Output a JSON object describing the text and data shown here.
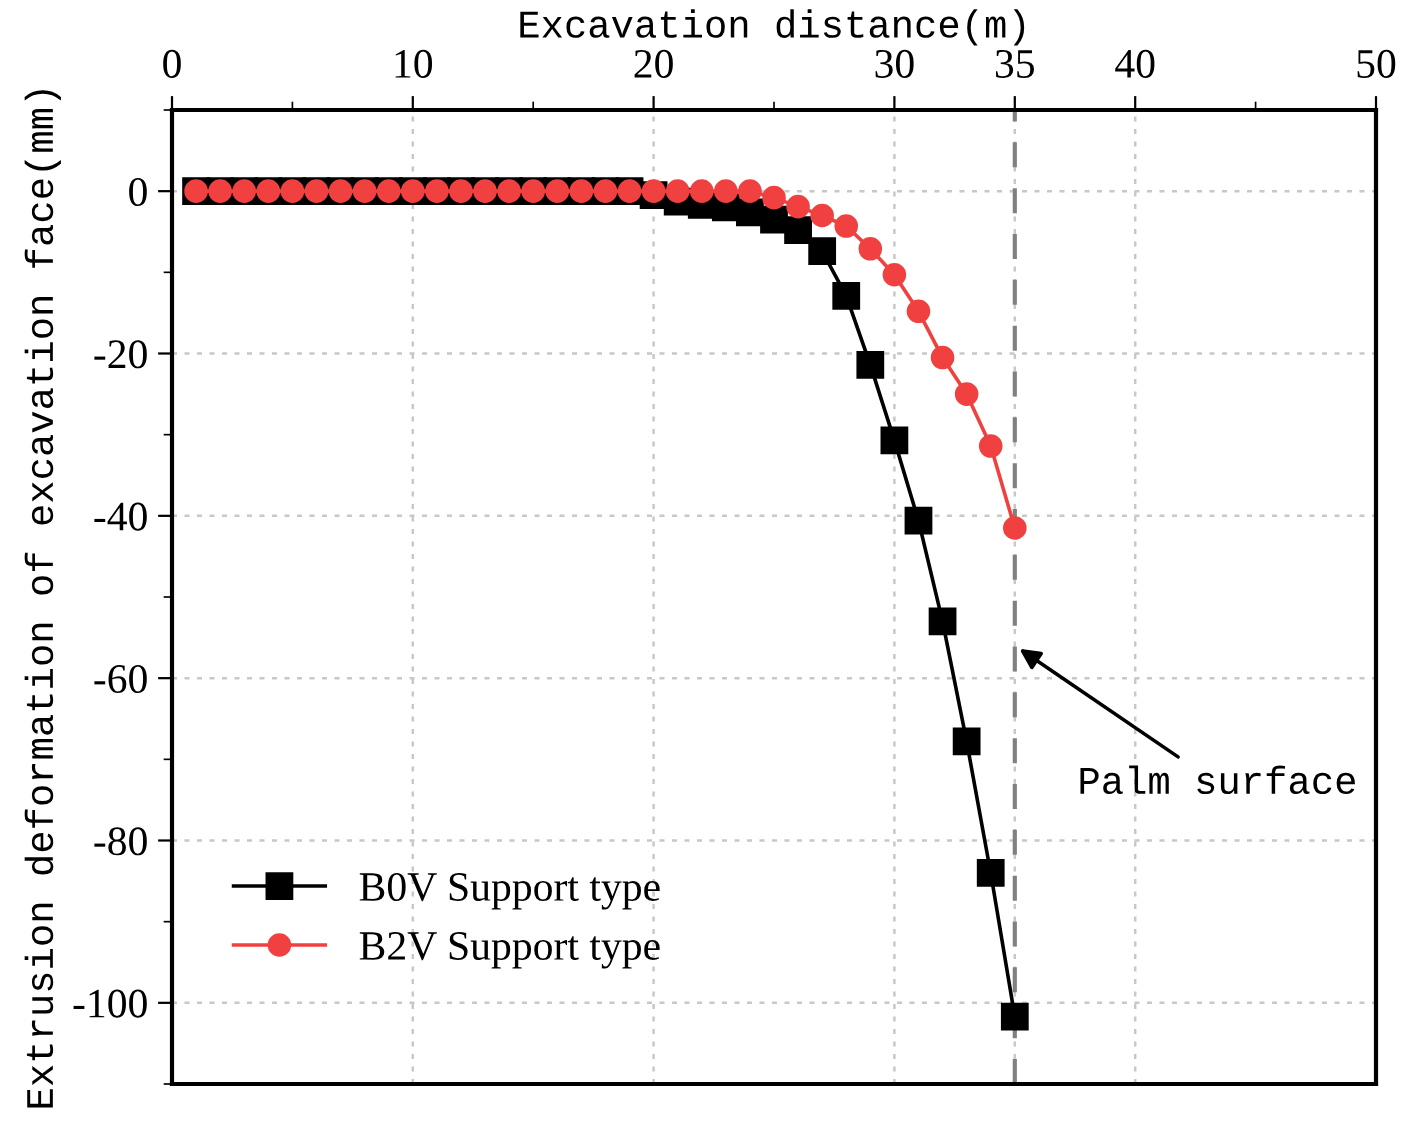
{
  "chart_data": {
    "type": "line",
    "xlabel": "Excavation distance(m)",
    "ylabel": "Extrusion deformation of excavation face(mm)",
    "x": [
      1,
      2,
      3,
      4,
      5,
      6,
      7,
      8,
      9,
      10,
      11,
      12,
      13,
      14,
      15,
      16,
      17,
      18,
      19,
      20,
      21,
      22,
      23,
      24,
      25,
      26,
      27,
      28,
      29,
      30,
      31,
      32,
      33,
      34,
      35
    ],
    "series": [
      {
        "name": "B0V Support type",
        "color": "#000000",
        "marker": "square",
        "values": [
          0,
          0,
          0,
          0,
          0,
          0,
          0,
          0,
          0,
          0,
          0,
          0,
          0,
          0,
          0,
          0,
          0,
          0,
          0,
          -0.5,
          -1.3,
          -1.7,
          -2,
          -2.6,
          -3.5,
          -4.8,
          -7.4,
          -12.9,
          -21.4,
          -30.7,
          -40.6,
          -53,
          -67.8,
          -84,
          -101.7
        ]
      },
      {
        "name": "B2V Support type",
        "color": "#f04040",
        "marker": "circle",
        "values": [
          0,
          0,
          0,
          0,
          0,
          0,
          0,
          0,
          0,
          0,
          0,
          0,
          0,
          0,
          0,
          0,
          0,
          0,
          0,
          0,
          0,
          0,
          0,
          0,
          -0.8,
          -1.9,
          -3,
          -4.3,
          -7.1,
          -10.3,
          -14.8,
          -20.5,
          -25,
          -31.4,
          -41.5
        ]
      }
    ],
    "xlim": [
      0,
      50
    ],
    "xticks": [
      0,
      {
        "value": 5,
        "label": null
      },
      10,
      {
        "value": 15,
        "label": null
      },
      20,
      {
        "value": 25,
        "label": null
      },
      30,
      35,
      40,
      {
        "value": 45,
        "label": null
      },
      50
    ],
    "ylim": [
      -110,
      10
    ],
    "yticks": [
      {
        "value": 10,
        "label": null
      },
      0,
      {
        "value": -10,
        "label": null
      },
      -20,
      {
        "value": -30,
        "label": null
      },
      -40,
      {
        "value": -50,
        "label": null
      },
      -60,
      {
        "value": -70,
        "label": null
      },
      -80,
      {
        "value": -90,
        "label": null
      },
      -100,
      {
        "value": -110,
        "label": null
      }
    ],
    "ref_lines": [
      {
        "axis": "x",
        "value": 35,
        "color": "#808080",
        "line_style": "dashed"
      }
    ],
    "annotations": [
      {
        "text": "Palm surface",
        "x": 35,
        "y": -56
      }
    ],
    "grid": true,
    "legend": "bottom left",
    "line_style": "solid"
  }
}
